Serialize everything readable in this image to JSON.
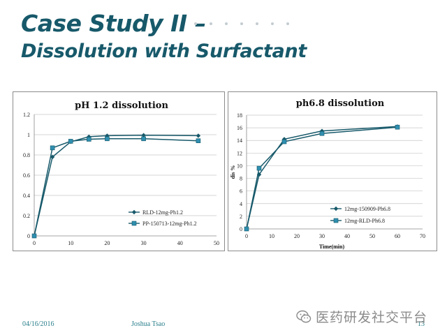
{
  "slide": {
    "title_line1": "Case Study II –",
    "title_line2": "Dissolution with Surfactant"
  },
  "footer": {
    "date": "04/16/2016",
    "author": "Joshua Tsao",
    "page_number": "13"
  },
  "watermark": {
    "icon": "wechat-icon",
    "text": "医药研发社交平台"
  },
  "colors": {
    "title": "#17596a",
    "series": "#17596a",
    "footer": "#2a7f8c"
  },
  "chart_data": [
    {
      "type": "line",
      "title": "pH 1.2 dissolution",
      "xlabel": "",
      "ylabel": "",
      "xlim": [
        0,
        50
      ],
      "ylim": [
        0,
        1.2
      ],
      "x_ticks": [
        "0",
        "10",
        "20",
        "30",
        "40",
        "50"
      ],
      "y_ticks": [
        "0",
        "0.2",
        "0.4",
        "0.6",
        "0.8",
        "1",
        "1.2"
      ],
      "grid": true,
      "legend": "bottom-right",
      "series": [
        {
          "name": "RLD-12mg-Ph1.2",
          "marker": "diamond",
          "x": [
            0,
            5,
            10,
            15,
            20,
            30,
            45
          ],
          "y": [
            0,
            0.78,
            0.93,
            0.98,
            0.99,
            0.995,
            0.99
          ]
        },
        {
          "name": "PP-150713-12mg-Ph1.2",
          "marker": "square",
          "x": [
            0,
            5,
            10,
            15,
            20,
            30,
            45
          ],
          "y": [
            0,
            0.87,
            0.935,
            0.955,
            0.96,
            0.96,
            0.94
          ]
        }
      ]
    },
    {
      "type": "line",
      "title": "ph6.8 dissolution",
      "xlabel": "Time(min)",
      "ylabel": "dis %",
      "xlim": [
        0,
        70
      ],
      "ylim": [
        0,
        18
      ],
      "x_ticks": [
        "0",
        "10",
        "20",
        "30",
        "40",
        "50",
        "60",
        "70"
      ],
      "y_ticks": [
        "0",
        "2",
        "4",
        "6",
        "8",
        "10",
        "12",
        "14",
        "16",
        "18"
      ],
      "grid": true,
      "legend": "bottom-right",
      "series": [
        {
          "name": "12mg-150909-Ph6.8",
          "marker": "diamond",
          "x": [
            0,
            5,
            15,
            30,
            60
          ],
          "y": [
            0,
            8.6,
            14.2,
            15.5,
            16.2
          ]
        },
        {
          "name": "12mg-RLD-Ph6.8",
          "marker": "square",
          "x": [
            0,
            5,
            15,
            30,
            60
          ],
          "y": [
            0,
            9.6,
            13.8,
            15.1,
            16.1
          ]
        }
      ]
    }
  ]
}
